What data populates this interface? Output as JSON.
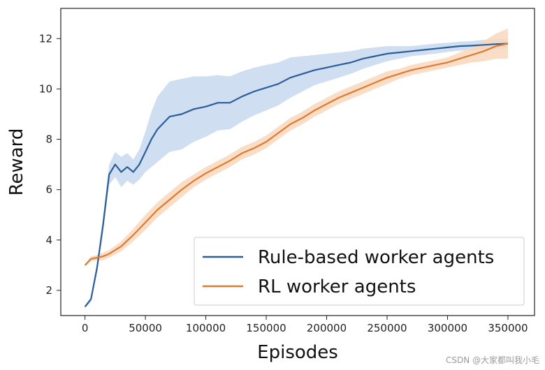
{
  "chart_data": {
    "type": "line",
    "xlabel": "Episodes",
    "ylabel": "Reward",
    "xlim": [
      -20000,
      372000
    ],
    "ylim": [
      1.0,
      13.2
    ],
    "xticks": [
      0,
      50000,
      100000,
      150000,
      200000,
      250000,
      300000,
      350000
    ],
    "xtick_labels": [
      "0",
      "50000",
      "100000",
      "150000",
      "200000",
      "250000",
      "300000",
      "350000"
    ],
    "yticks": [
      2,
      4,
      6,
      8,
      10,
      12
    ],
    "ytick_labels": [
      "2",
      "4",
      "6",
      "8",
      "10",
      "12"
    ],
    "grid": false,
    "legend_position": "lower-right",
    "series": [
      {
        "name": "Rule-based worker agents",
        "color": "#2a5d9a",
        "band_color": "#c7d9ee",
        "x": [
          0,
          5000,
          10000,
          15000,
          20000,
          25000,
          30000,
          35000,
          40000,
          45000,
          50000,
          55000,
          60000,
          70000,
          80000,
          90000,
          100000,
          110000,
          120000,
          130000,
          140000,
          150000,
          160000,
          170000,
          180000,
          190000,
          200000,
          210000,
          220000,
          230000,
          240000,
          250000,
          260000,
          270000,
          280000,
          290000,
          300000,
          310000,
          320000,
          330000,
          340000,
          350000
        ],
        "y": [
          1.35,
          1.65,
          2.9,
          4.6,
          6.6,
          7.0,
          6.7,
          6.9,
          6.7,
          7.0,
          7.5,
          8.0,
          8.4,
          8.9,
          9.0,
          9.2,
          9.3,
          9.45,
          9.45,
          9.7,
          9.9,
          10.05,
          10.2,
          10.45,
          10.6,
          10.75,
          10.85,
          10.95,
          11.05,
          11.2,
          11.3,
          11.4,
          11.45,
          11.5,
          11.55,
          11.6,
          11.65,
          11.7,
          11.72,
          11.75,
          11.78,
          11.8
        ],
        "band_halfwidth": [
          0.05,
          0.1,
          0.2,
          0.3,
          0.4,
          0.5,
          0.6,
          0.55,
          0.5,
          0.6,
          0.8,
          1.1,
          1.3,
          1.4,
          1.4,
          1.3,
          1.2,
          1.1,
          1.05,
          1.0,
          0.95,
          0.9,
          0.85,
          0.8,
          0.7,
          0.6,
          0.55,
          0.5,
          0.45,
          0.4,
          0.35,
          0.3,
          0.25,
          0.2,
          0.2,
          0.2,
          0.18,
          0.18,
          0.18,
          0.2,
          0.2,
          0.2
        ]
      },
      {
        "name": "RL worker agents",
        "color": "#e07a2e",
        "band_color": "#f8d7bd",
        "x": [
          0,
          5000,
          10000,
          15000,
          20000,
          30000,
          40000,
          50000,
          60000,
          70000,
          80000,
          90000,
          100000,
          110000,
          120000,
          130000,
          140000,
          150000,
          160000,
          170000,
          180000,
          190000,
          200000,
          210000,
          220000,
          230000,
          240000,
          250000,
          260000,
          270000,
          280000,
          290000,
          300000,
          310000,
          320000,
          330000,
          340000,
          350000
        ],
        "y": [
          3.0,
          3.25,
          3.3,
          3.35,
          3.45,
          3.75,
          4.2,
          4.7,
          5.2,
          5.6,
          6.0,
          6.35,
          6.65,
          6.9,
          7.15,
          7.45,
          7.65,
          7.9,
          8.25,
          8.6,
          8.85,
          9.15,
          9.4,
          9.65,
          9.85,
          10.05,
          10.25,
          10.45,
          10.6,
          10.75,
          10.85,
          10.95,
          11.05,
          11.2,
          11.35,
          11.5,
          11.7,
          11.8
        ],
        "band_halfwidth": [
          0.05,
          0.1,
          0.1,
          0.15,
          0.15,
          0.2,
          0.25,
          0.3,
          0.3,
          0.3,
          0.3,
          0.25,
          0.25,
          0.25,
          0.25,
          0.25,
          0.25,
          0.25,
          0.25,
          0.25,
          0.25,
          0.25,
          0.25,
          0.25,
          0.25,
          0.25,
          0.25,
          0.25,
          0.2,
          0.2,
          0.2,
          0.2,
          0.2,
          0.25,
          0.3,
          0.4,
          0.5,
          0.6
        ]
      }
    ]
  },
  "watermark": "CSDN @大家都叫我小毛"
}
